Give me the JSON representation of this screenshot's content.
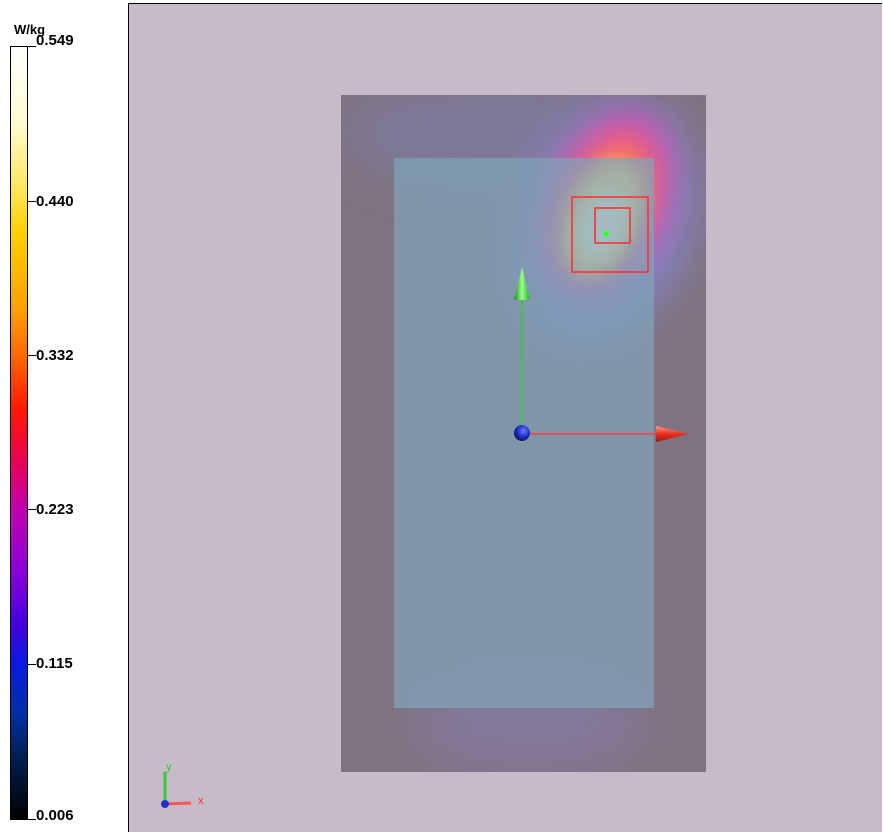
{
  "colorbar": {
    "unit": "W/kg",
    "ticks": [
      "0.549",
      "0.440",
      "0.332",
      "0.223",
      "0.115",
      "0.006"
    ]
  },
  "scene": {
    "background_color": "#c8bbc9",
    "phantom_color": "#7f737f",
    "device_color": "#7fa3b8",
    "x_axis_color": "#ff3b3b",
    "y_axis_color": "#33cc33",
    "origin_color": "#2030d0",
    "marker_color": "#ff2a2a",
    "triad": {
      "x": "x",
      "y": "y"
    }
  }
}
